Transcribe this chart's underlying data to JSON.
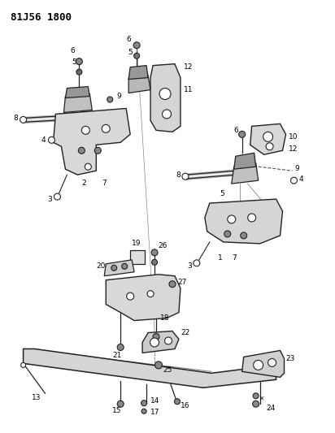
{
  "title": "81J56 1800",
  "bg_color": "#ffffff",
  "fig_width": 4.12,
  "fig_height": 5.33,
  "dpi": 100
}
